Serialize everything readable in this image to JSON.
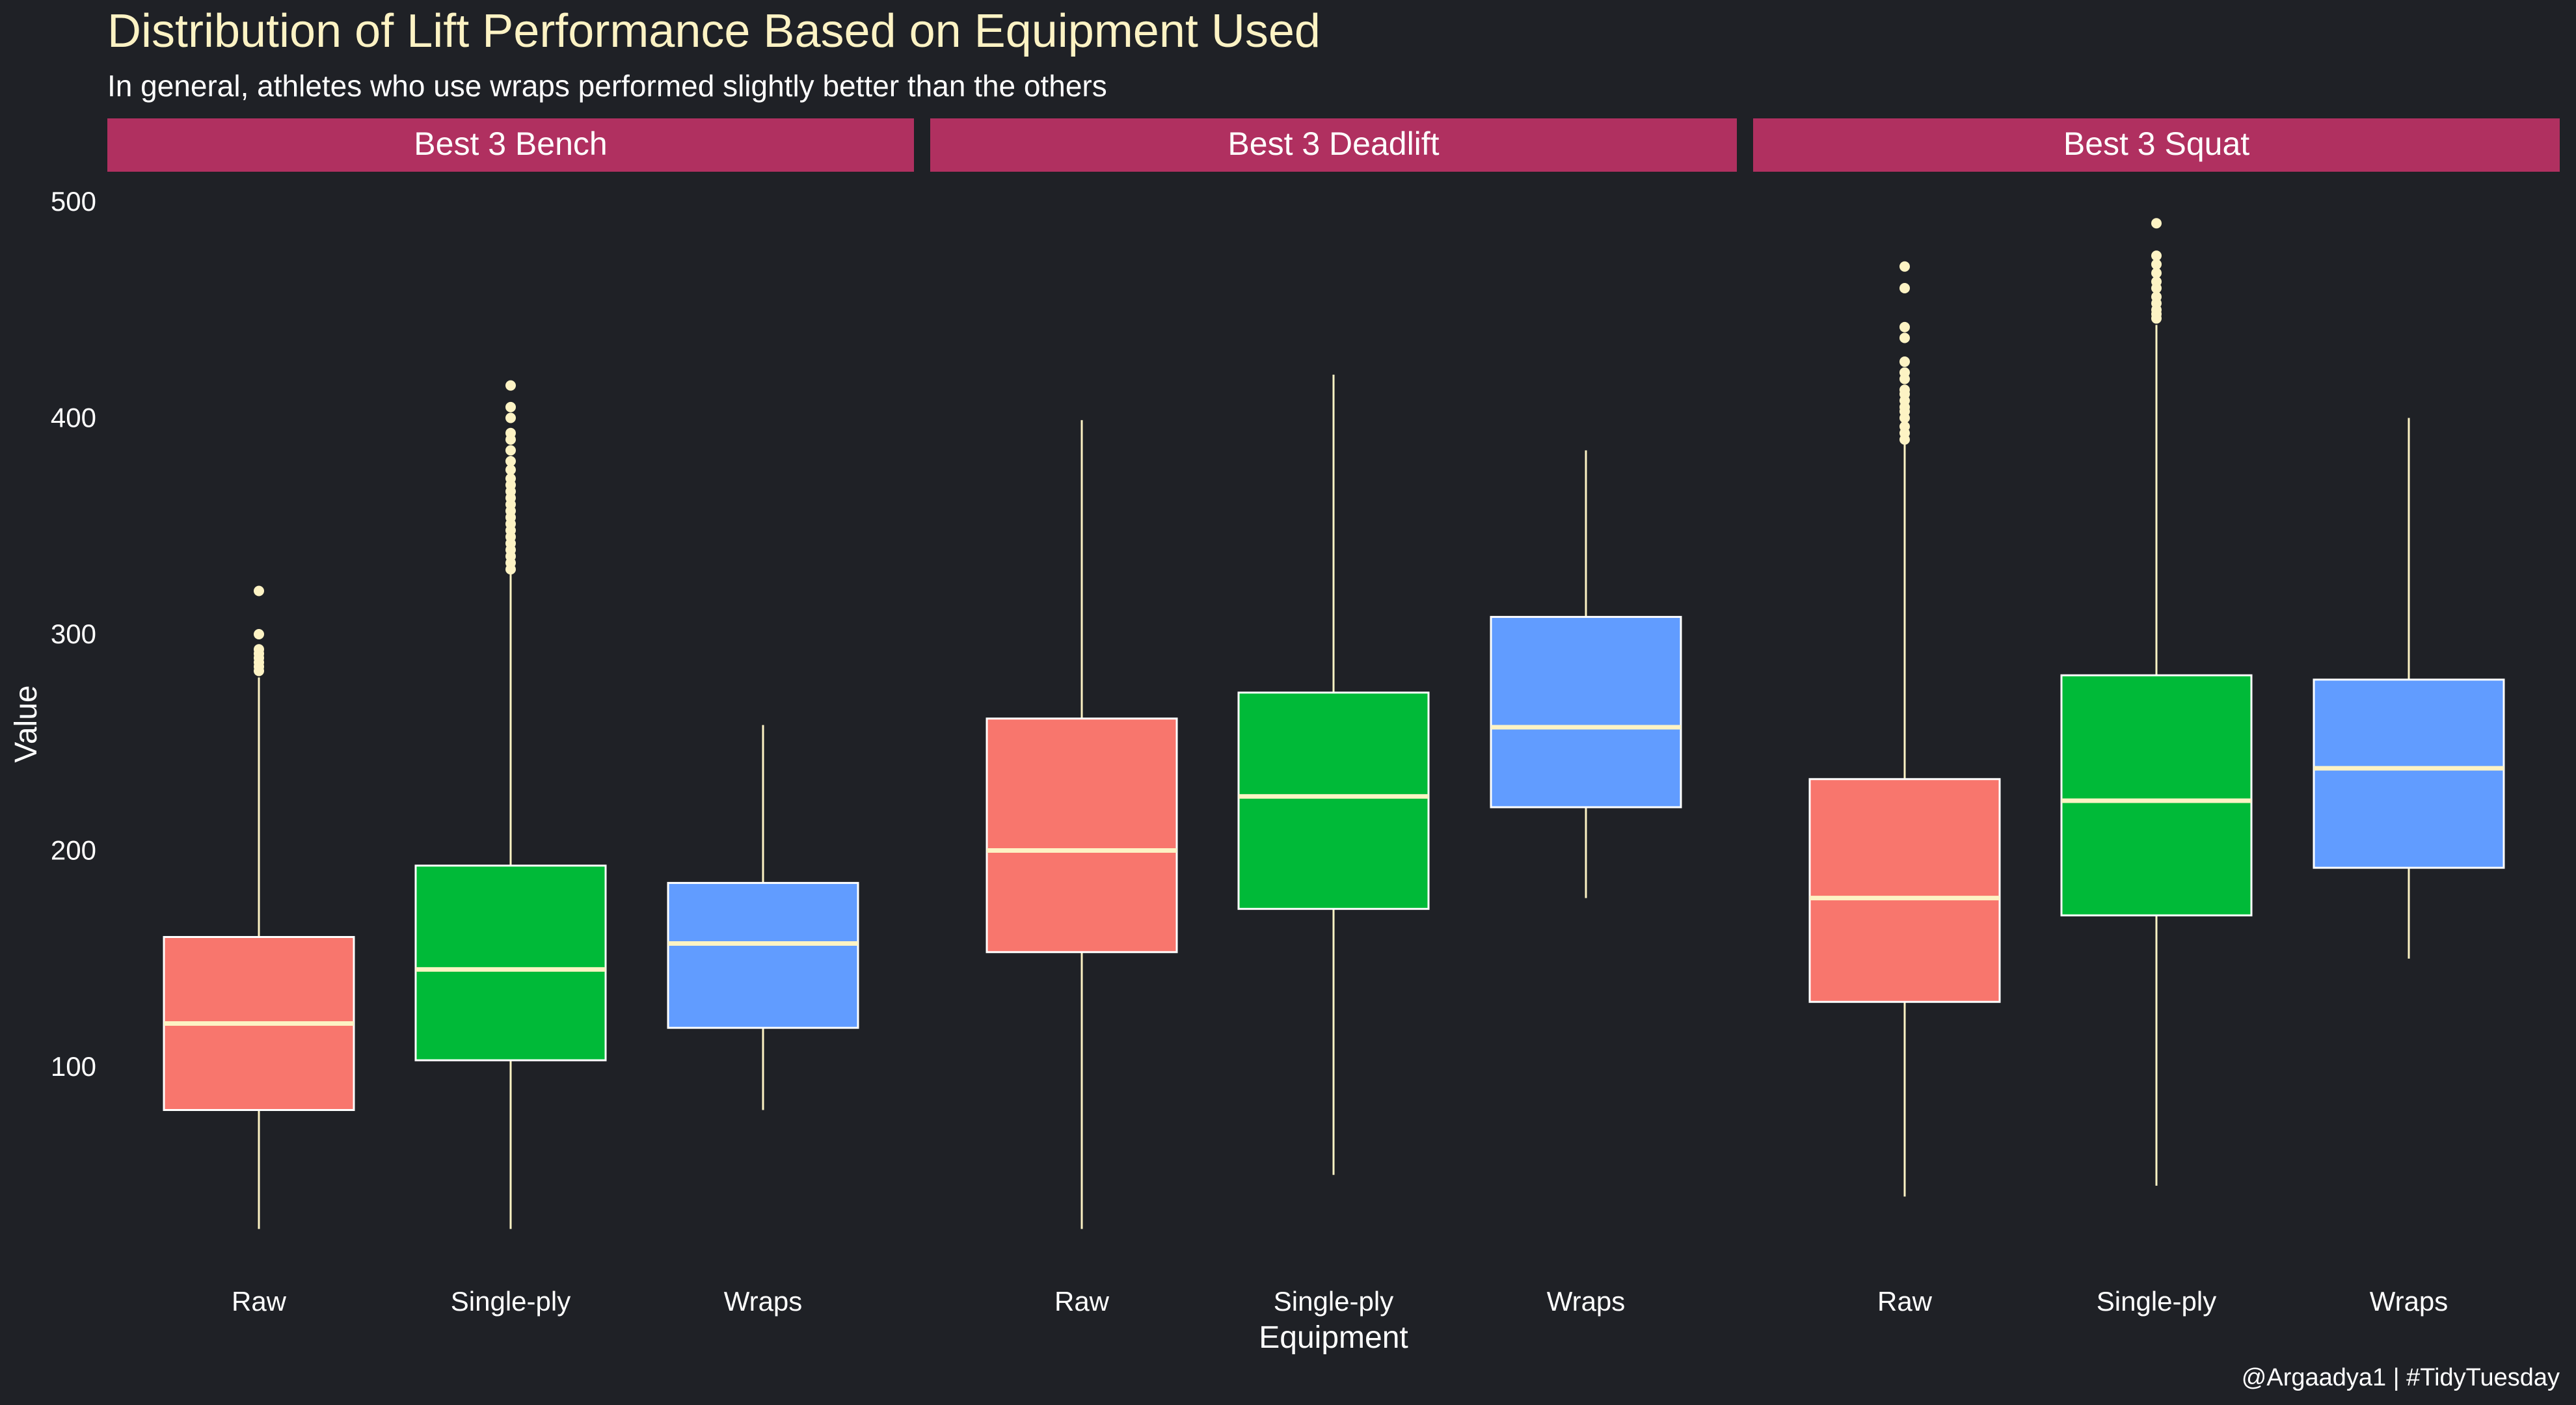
{
  "chart_data": {
    "type": "boxplot",
    "title": "Distribution of Lift Performance Based on Equipment Used",
    "subtitle": "In general, athletes who use wraps performed slightly better than the others",
    "xlabel": "Equipment",
    "ylabel": "Value",
    "caption": "@Argaadya1 | #TidyTuesday",
    "ylim": [
      0,
      510
    ],
    "yticks": [
      100,
      200,
      300,
      400,
      500
    ],
    "yticklabels": [
      "100",
      "200",
      "300",
      "400",
      "500"
    ],
    "grid": false,
    "legend": "none",
    "categories": [
      "Raw",
      "Single-ply",
      "Wraps"
    ],
    "colors": {
      "Raw": "#f8766d",
      "Single-ply": "#00ba38",
      "Wraps": "#619cff",
      "strip": "#b03060",
      "background": "#1f2126",
      "outlier": "#fdf3c4",
      "median": "#fdf3c4"
    },
    "facets": [
      {
        "name": "Best 3 Bench",
        "boxes": [
          {
            "category": "Raw",
            "whisker_low": 25,
            "q1": 80,
            "median": 120,
            "q3": 160,
            "whisker_high": 280,
            "outliers": [
              283,
              285,
              287,
              289,
              291,
              293,
              300,
              320
            ]
          },
          {
            "category": "Single-ply",
            "whisker_low": 25,
            "q1": 103,
            "median": 145,
            "q3": 193,
            "whisker_high": 328,
            "outliers": [
              330,
              333,
              336,
              339,
              342,
              345,
              348,
              351,
              354,
              357,
              360,
              363,
              366,
              369,
              372,
              376,
              380,
              385,
              390,
              393,
              400,
              405,
              415
            ]
          },
          {
            "category": "Wraps",
            "whisker_low": 80,
            "q1": 118,
            "median": 157,
            "q3": 185,
            "whisker_high": 258,
            "outliers": []
          }
        ]
      },
      {
        "name": "Best 3 Deadlift",
        "boxes": [
          {
            "category": "Raw",
            "whisker_low": 25,
            "q1": 153,
            "median": 200,
            "q3": 261,
            "whisker_high": 399,
            "outliers": []
          },
          {
            "category": "Single-ply",
            "whisker_low": 50,
            "q1": 173,
            "median": 225,
            "q3": 273,
            "whisker_high": 420,
            "outliers": []
          },
          {
            "category": "Wraps",
            "whisker_low": 178,
            "q1": 220,
            "median": 257,
            "q3": 308,
            "whisker_high": 385,
            "outliers": []
          }
        ]
      },
      {
        "name": "Best 3 Squat",
        "boxes": [
          {
            "category": "Raw",
            "whisker_low": 40,
            "q1": 130,
            "median": 178,
            "q3": 233,
            "whisker_high": 388,
            "outliers": [
              390,
              393,
              396,
              400,
              403,
              405,
              408,
              411,
              413,
              418,
              421,
              426,
              437,
              442,
              460,
              470
            ]
          },
          {
            "category": "Single-ply",
            "whisker_low": 45,
            "q1": 170,
            "median": 223,
            "q3": 281,
            "whisker_high": 443,
            "outliers": [
              446,
              448,
              450,
              453,
              456,
              460,
              463,
              467,
              471,
              475,
              490
            ]
          },
          {
            "category": "Wraps",
            "whisker_low": 150,
            "q1": 192,
            "median": 238,
            "q3": 279,
            "whisker_high": 400,
            "outliers": []
          }
        ]
      }
    ]
  }
}
